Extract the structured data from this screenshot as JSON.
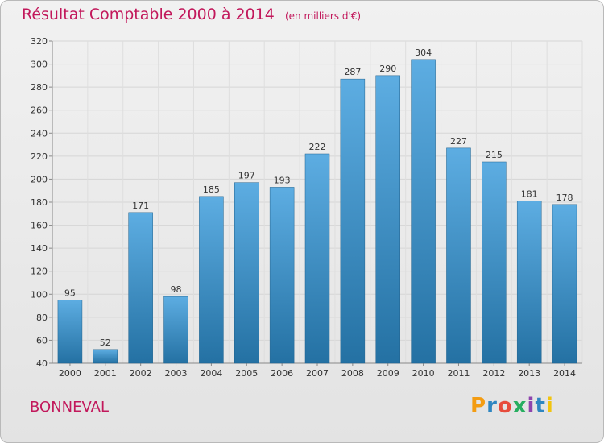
{
  "title": "Résultat Comptable 2000 à 2014",
  "unit": "(en milliers d'€)",
  "commune": "BONNEVAL",
  "logo": {
    "text": "Proxiti",
    "colors": [
      "#f39c12",
      "#2e86c1",
      "#e74c3c",
      "#27ae60",
      "#8e44ad",
      "#2e86c1",
      "#f1c40f"
    ]
  },
  "colors": {
    "bar_top": "#5dade2",
    "bar_bottom": "#2471a3",
    "title": "#c2185b"
  },
  "chart_data": {
    "type": "bar",
    "title": "Résultat Comptable 2000 à 2014",
    "xlabel": "",
    "ylabel": "",
    "categories": [
      "2000",
      "2001",
      "2002",
      "2003",
      "2004",
      "2005",
      "2006",
      "2007",
      "2008",
      "2009",
      "2010",
      "2011",
      "2012",
      "2013",
      "2014"
    ],
    "values": [
      95,
      52,
      171,
      98,
      185,
      197,
      193,
      222,
      287,
      290,
      304,
      227,
      215,
      181,
      178
    ],
    "ylim": [
      40,
      320
    ],
    "yticks": [
      40,
      60,
      80,
      100,
      120,
      140,
      160,
      180,
      200,
      220,
      240,
      260,
      280,
      300,
      320
    ],
    "grid": true,
    "value_labels": true
  }
}
